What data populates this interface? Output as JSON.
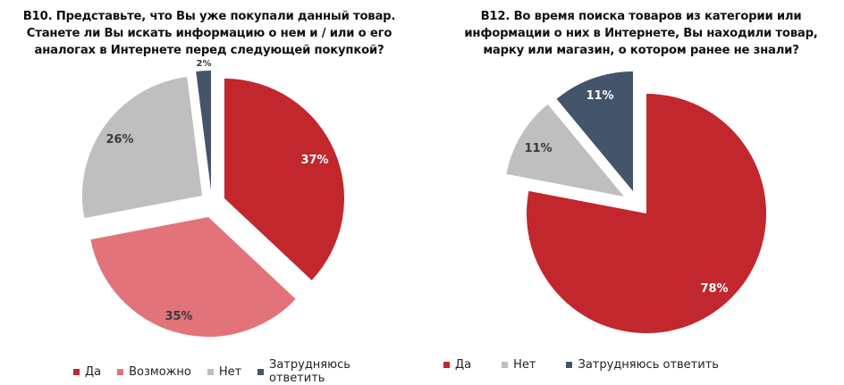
{
  "chart_data": [
    {
      "type": "pie",
      "title": "B10. Представьте, что Вы уже покупали данный товар. Станете ли Вы искать информацию о нем и / или о его аналогах в Интернете перед следующей покупкой?",
      "title_lines": [
        "B10. Представьте, что Вы уже покупали данный товар.",
        "Станете ли Вы искать информацию о нем и / или о его",
        "аналогах в Интернете перед следующей покупкой?"
      ],
      "categories": [
        "Да",
        "Возможно",
        "Нет",
        "Затрудняюсь ответить"
      ],
      "values": [
        37,
        35,
        26,
        2
      ],
      "labels": [
        "37%",
        "35%",
        "26%",
        "2%"
      ],
      "colors": [
        "#c1272d",
        "#e2737a",
        "#bfbfbf",
        "#44546a"
      ],
      "exploded": true,
      "legend_position": "bottom"
    },
    {
      "type": "pie",
      "title": "B12. Во время поиска товаров из категории или информации о них в Интернете, Вы находили товар, марку или магазин, о котором ранее не знали?",
      "title_lines": [
        "B12. Во время поиска товаров из категории или",
        "информации о них в Интернете, Вы находили товар,",
        "марку или магазин, о котором ранее не знали?"
      ],
      "categories": [
        "Да",
        "Нет",
        "Затрудняюсь ответить"
      ],
      "values": [
        78,
        11,
        11
      ],
      "labels": [
        "78%",
        "11%",
        "11%"
      ],
      "colors": [
        "#c1272d",
        "#bfbfbf",
        "#44546a"
      ],
      "exploded": true,
      "legend_position": "bottom"
    }
  ],
  "left": {
    "title_lines": [
      "B10. Представьте, что Вы уже покупали данный товар.",
      "Станете ли Вы искать информацию о нем и / или о его",
      "аналогах в Интернете перед следующей покупкой?"
    ],
    "slices": [
      {
        "label": "37%",
        "name": "Да",
        "color": "#c1272d",
        "text_color": "#ffffff"
      },
      {
        "label": "35%",
        "name": "Возможно",
        "color": "#e2737a",
        "text_color": "#3a3a3a"
      },
      {
        "label": "26%",
        "name": "Нет",
        "color": "#bfbfbf",
        "text_color": "#3a3a3a"
      },
      {
        "label": "2%",
        "name": "Затрудняюсь ответить",
        "color": "#44546a",
        "text_color": "#3a3a3a"
      }
    ],
    "legend": [
      {
        "label": "Да",
        "color": "#c1272d"
      },
      {
        "label": "Возможно",
        "color": "#e2737a"
      },
      {
        "label": "Нет",
        "color": "#bfbfbf"
      },
      {
        "label": "Затрудняюсь ответить",
        "color": "#44546a"
      }
    ]
  },
  "right": {
    "title_lines": [
      "B12. Во время поиска товаров из категории или",
      "информации о них в Интернете, Вы находили товар,",
      "марку или магазин, о котором ранее не знали?"
    ],
    "slices": [
      {
        "label": "78%",
        "name": "Да",
        "color": "#c1272d",
        "text_color": "#ffffff"
      },
      {
        "label": "11%",
        "name": "Нет",
        "color": "#bfbfbf",
        "text_color": "#3a3a3a"
      },
      {
        "label": "11%",
        "name": "Затрудняюсь ответить",
        "color": "#44546a",
        "text_color": "#ffffff"
      }
    ],
    "legend": [
      {
        "label": "Да",
        "color": "#c1272d"
      },
      {
        "label": "Нет",
        "color": "#bfbfbf"
      },
      {
        "label": "Затрудняюсь ответить",
        "color": "#44546a"
      }
    ]
  }
}
